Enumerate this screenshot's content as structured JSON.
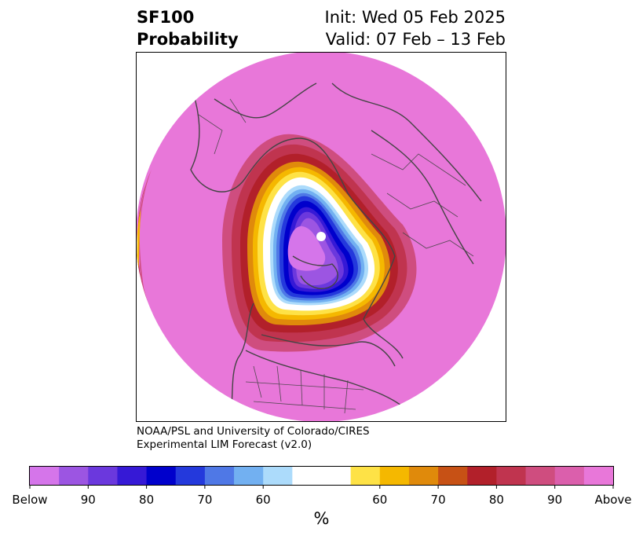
{
  "header": {
    "variable": "SF100",
    "product": "Probability",
    "init": "Init: Wed 05 Feb 2025",
    "valid": "Valid: 07 Feb – 13 Feb"
  },
  "credits": {
    "line1": "NOAA/PSL and University of Colorado/CIRES",
    "line2": "Experimental LIM Forecast (v2.0)"
  },
  "colorbar": {
    "colors": [
      "#d575ea",
      "#9c55e2",
      "#6b38dd",
      "#3619d6",
      "#0000cc",
      "#2439dc",
      "#4f78e6",
      "#72b0f1",
      "#acdbfb",
      "#ffffff",
      "#ffffff",
      "#fee246",
      "#f5b800",
      "#e08a0b",
      "#c75115",
      "#b2202a",
      "#c0344f",
      "#cf4d7f",
      "#db5fac",
      "#e877d9"
    ],
    "tick_labels": [
      "Below",
      "90",
      "80",
      "70",
      "60",
      "60",
      "70",
      "80",
      "90",
      "Above"
    ],
    "unit": "%"
  },
  "map_colors": {
    "background_field": "#e877d9",
    "outer_red": "#c0344f",
    "outer_yellow": "#fee246",
    "blue_core": "#0000cc",
    "purple_core": "#9c55e2",
    "pole_center": "#d575ea",
    "coastline": "#444444"
  }
}
